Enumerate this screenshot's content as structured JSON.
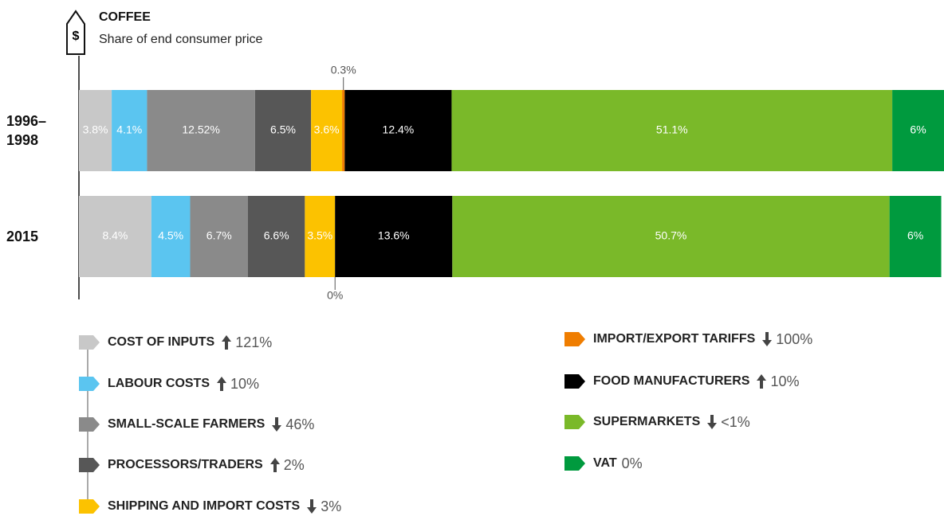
{
  "chart_data": {
    "type": "stacked-bar-horizontal",
    "title": "COFFEE",
    "subtitle": "Share of end consumer price",
    "categories": [
      "1996–1998",
      "2015"
    ],
    "xlim": [
      0,
      100.32
    ],
    "series": [
      {
        "name": "COST OF INPUTS",
        "color": "#c8c8c8",
        "values": [
          3.8,
          8.4
        ],
        "value_labels": [
          "3.8%",
          "8.4%"
        ],
        "change": "121%",
        "trend": "up"
      },
      {
        "name": "LABOUR COSTS",
        "color": "#5bc5f0",
        "values": [
          4.1,
          4.5
        ],
        "value_labels": [
          "4.1%",
          "4.5%"
        ],
        "change": "10%",
        "trend": "up"
      },
      {
        "name": "SMALL-SCALE FARMERS",
        "color": "#8a8a8a",
        "values": [
          12.52,
          6.7
        ],
        "value_labels": [
          "12.52%",
          "6.7%"
        ],
        "change": "46%",
        "trend": "down"
      },
      {
        "name": "PROCESSORS/TRADERS",
        "color": "#575757",
        "values": [
          6.5,
          6.6
        ],
        "value_labels": [
          "6.5%",
          "6.6%"
        ],
        "change": "2%",
        "trend": "up"
      },
      {
        "name": "SHIPPING AND IMPORT COSTS",
        "color": "#fcc200",
        "values": [
          3.6,
          3.5
        ],
        "value_labels": [
          "3.6%",
          "3.5%"
        ],
        "change": "3%",
        "trend": "down"
      },
      {
        "name": "IMPORT/EXPORT TARIFFS",
        "color": "#ef7d00",
        "values": [
          0.3,
          0
        ],
        "value_labels": [
          "0.3%",
          "0%"
        ],
        "change": "100%",
        "trend": "down"
      },
      {
        "name": "FOOD MANUFACTURERS",
        "color": "#000000",
        "values": [
          12.4,
          13.6
        ],
        "value_labels": [
          "12.4%",
          "13.6%"
        ],
        "change": "10%",
        "trend": "up"
      },
      {
        "name": "SUPERMARKETS",
        "color": "#7ab929",
        "values": [
          51.1,
          50.7
        ],
        "value_labels": [
          "51.1%",
          "50.7%"
        ],
        "change": "<1%",
        "trend": "down"
      },
      {
        "name": "VAT",
        "color": "#009a3e",
        "values": [
          6,
          6
        ],
        "value_labels": [
          "6%",
          "6%"
        ],
        "change": "0%"
      }
    ]
  }
}
